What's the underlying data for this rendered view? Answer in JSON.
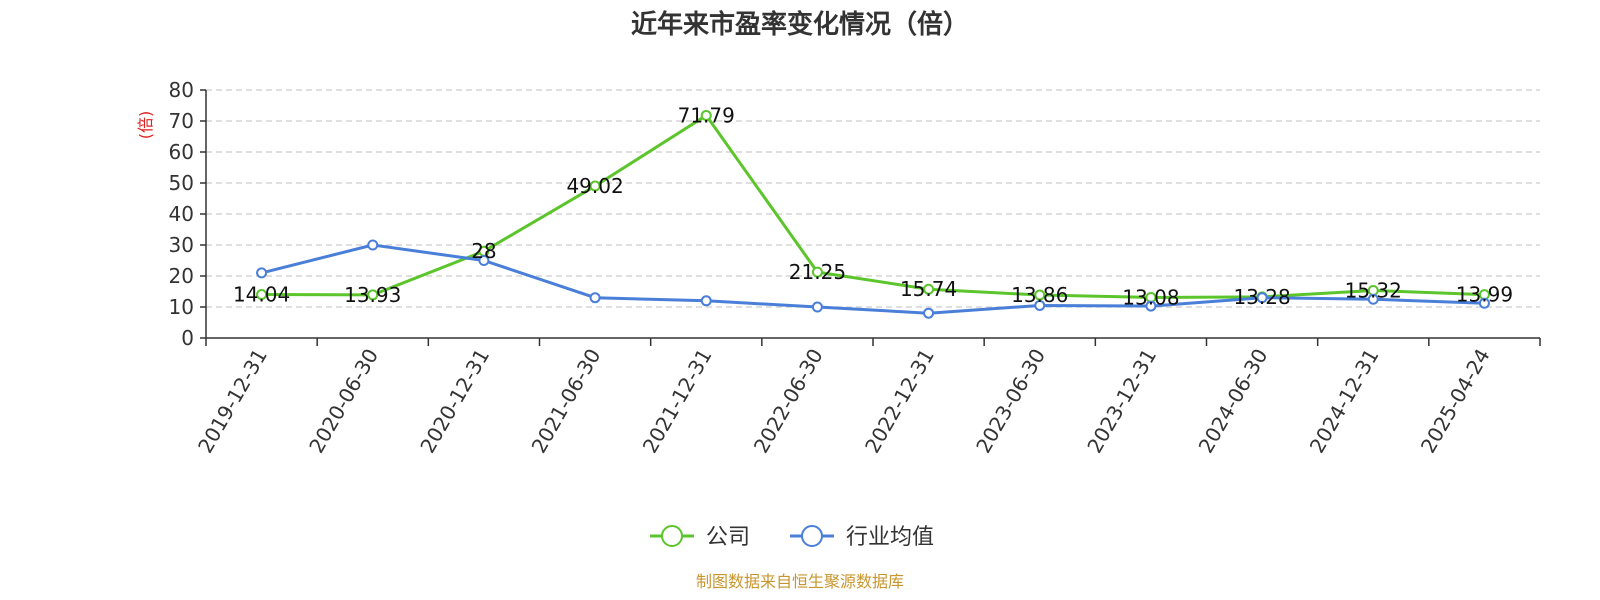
{
  "chart_data": {
    "type": "line",
    "title": "近年来市盈率变化情况（倍）",
    "ylabel": "(倍)",
    "xlabel": "",
    "ylim": [
      0,
      80
    ],
    "yticks": [
      0,
      10,
      20,
      30,
      40,
      50,
      60,
      70,
      80
    ],
    "grid": true,
    "legend_position": "bottom",
    "categories": [
      "2019-12-31",
      "2020-06-30",
      "2020-12-31",
      "2021-06-30",
      "2021-12-31",
      "2022-06-30",
      "2022-12-31",
      "2023-06-30",
      "2023-12-31",
      "2024-06-30",
      "2024-12-31",
      "2025-04-24"
    ],
    "series": [
      {
        "name": "公司",
        "color": "#5cc52c",
        "values": [
          14.04,
          13.93,
          28,
          49.02,
          71.79,
          21.25,
          15.74,
          13.86,
          13.08,
          13.28,
          15.32,
          13.99
        ],
        "labels": [
          "14.04",
          "13.93",
          "28",
          "49.02",
          "71.79",
          "21.25",
          "15.74",
          "13.86",
          "13.08",
          "13.28",
          "15.32",
          "13.99"
        ]
      },
      {
        "name": "行业均值",
        "color": "#4a7fd9",
        "values": [
          21,
          30,
          25,
          13,
          12,
          10,
          8,
          10.5,
          10.3,
          13,
          12.5,
          11.2
        ]
      }
    ],
    "source": "制图数据来自恒生聚源数据库"
  }
}
